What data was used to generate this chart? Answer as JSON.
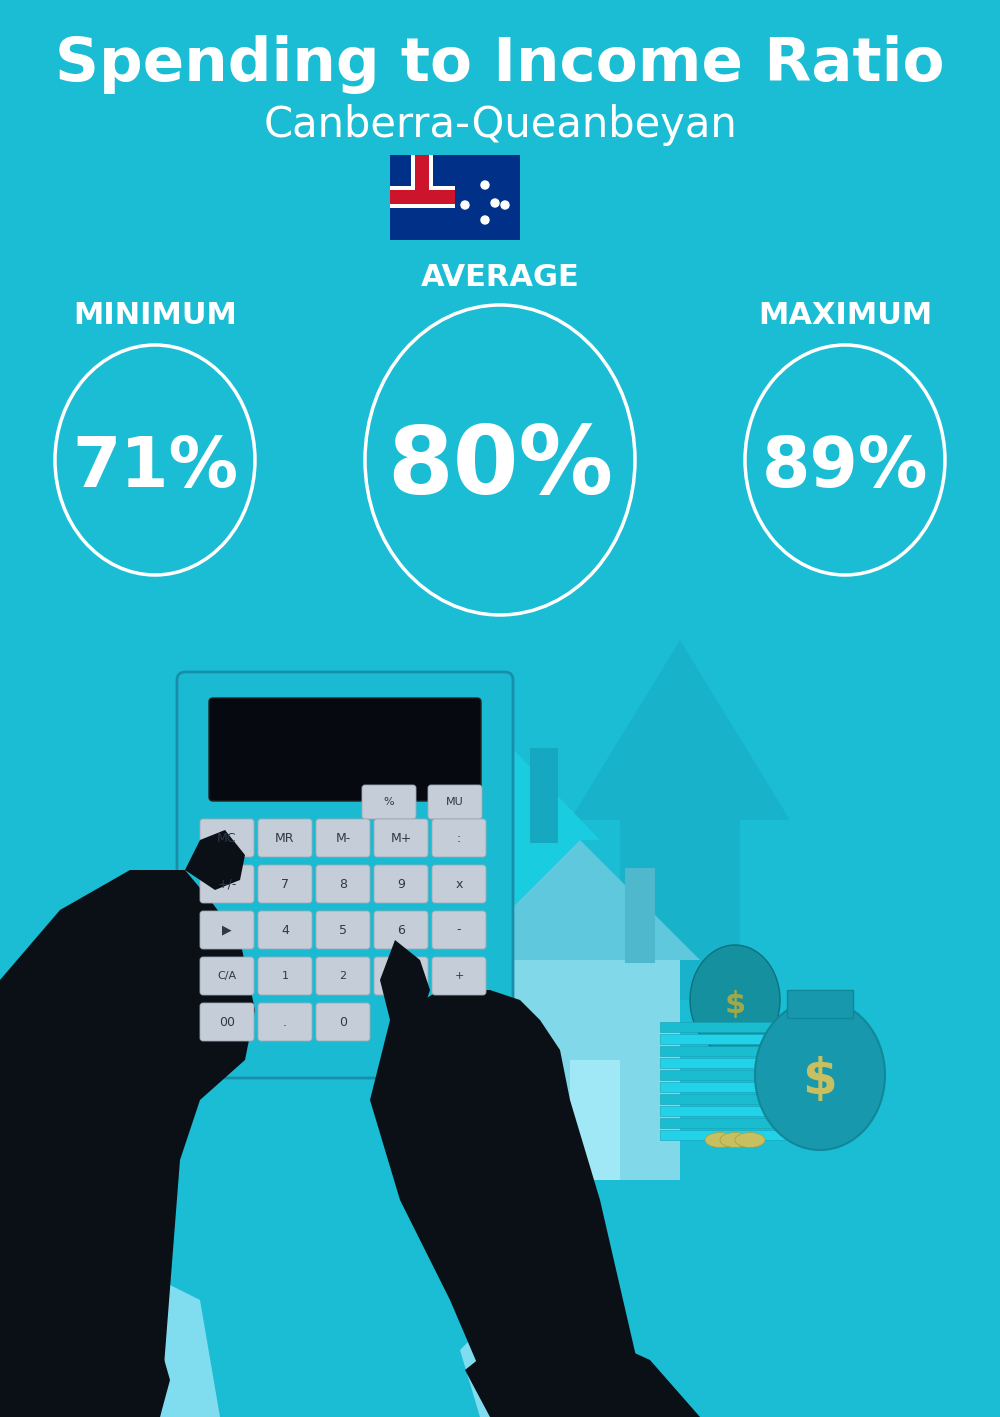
{
  "title": "Spending to Income Ratio",
  "subtitle": "Canberra-Queanbeyan",
  "bg_color": "#1BBDD4",
  "shadow_color": "#19AABF",
  "dark_teal": "#179CB5",
  "light_teal": "#8EE8F5",
  "hand_color": "#0A1015",
  "cuff_color": "#80DDEF",
  "calc_color": "#1ABBD2",
  "calc_dark": "#188FAA",
  "screen_color": "#060A10",
  "btn_color": "#C5CDD8",
  "btn_text": "#303848",
  "house_color": "#1ACCE0",
  "house_dark": "#15A8C0",
  "arrow_color": "#18B0C8",
  "money_color": "#20D0E8",
  "bag_color": "#1898AC",
  "dollar_color": "#C8C060",
  "text_color": "#FFFFFF",
  "circle_color": "#FFFFFF",
  "title_fontsize": 44,
  "subtitle_fontsize": 30,
  "label_fontsize": 22,
  "val_sm": 50,
  "val_lg": 68,
  "min_label": "MINIMUM",
  "avg_label": "AVERAGE",
  "max_label": "MAXIMUM",
  "min_value": "71%",
  "avg_value": "80%",
  "max_value": "89%",
  "fig_w": 10.0,
  "fig_h": 14.17
}
